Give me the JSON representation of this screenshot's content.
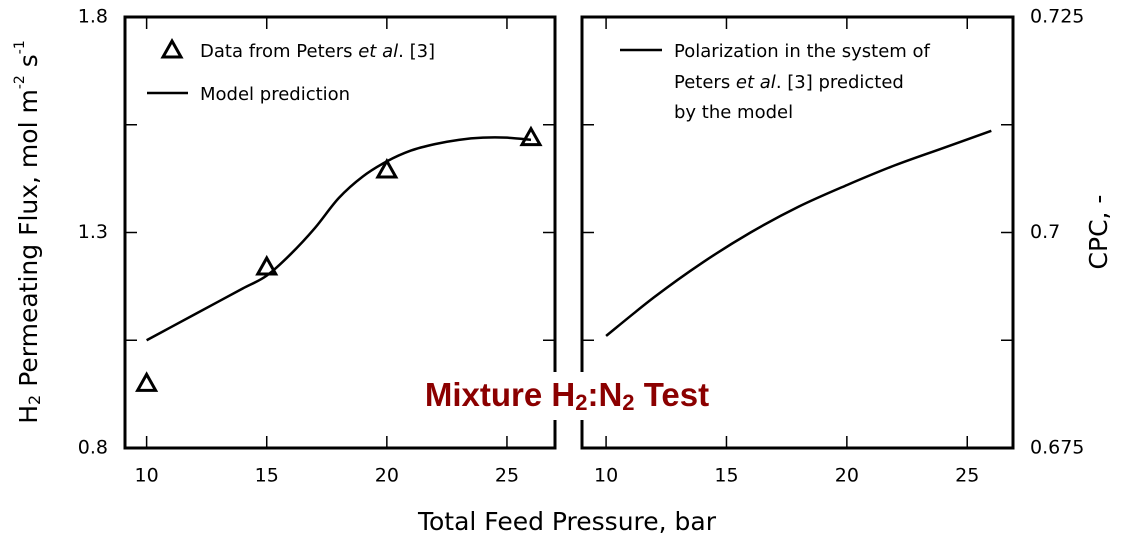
{
  "title": [
    "Mixture H",
    "2",
    ":N",
    "2",
    " Test"
  ],
  "xlabel": "Total Feed Pressure, bar",
  "chart_data": [
    {
      "type": "line",
      "ylabel": [
        "H",
        "2",
        " Permeating Flux, mol m",
        "-2",
        " s",
        "-1"
      ],
      "xlim": [
        9.1,
        27
      ],
      "ylim": [
        0.8,
        1.8
      ],
      "xticks": [
        10,
        15,
        20,
        25
      ],
      "yticks": [
        0.8,
        1.3,
        1.8
      ],
      "minor_yticks": [
        1.05,
        1.55
      ],
      "series": [
        {
          "name": [
            "Data from Peters ",
            "et al",
            ". [3]"
          ],
          "style": "markers",
          "marker": "triangle",
          "color": "#000000",
          "x": [
            10,
            15,
            20,
            26
          ],
          "values": [
            0.95,
            1.22,
            1.445,
            1.52
          ]
        },
        {
          "name": "Model prediction",
          "style": "line",
          "color": "#000000",
          "x": [
            10,
            11,
            12,
            13,
            14,
            15,
            16,
            17,
            18,
            19,
            20,
            21,
            22,
            23,
            24,
            25,
            26
          ],
          "values": [
            1.05,
            1.08,
            1.11,
            1.14,
            1.17,
            1.2,
            1.25,
            1.31,
            1.38,
            1.43,
            1.465,
            1.49,
            1.505,
            1.515,
            1.52,
            1.52,
            1.515
          ]
        }
      ]
    },
    {
      "type": "line",
      "ylabel": "CPC, -",
      "xlim": [
        9.0,
        26.9
      ],
      "ylim": [
        0.675,
        0.725
      ],
      "xticks": [
        10,
        15,
        20,
        25
      ],
      "yticks": [
        0.675,
        0.7,
        0.725
      ],
      "minor_yticks": [
        0.6875,
        0.7125
      ],
      "series": [
        {
          "name": [
            "Polarization in the system of",
            "Peters ",
            "et al",
            ". [3] predicted",
            "by the model"
          ],
          "style": "line",
          "color": "#000000",
          "x": [
            10,
            12,
            14,
            16,
            18,
            20,
            22,
            24,
            26
          ],
          "values": [
            0.688,
            0.6925,
            0.6965,
            0.7,
            0.703,
            0.7055,
            0.7078,
            0.7098,
            0.7118
          ]
        }
      ]
    }
  ]
}
